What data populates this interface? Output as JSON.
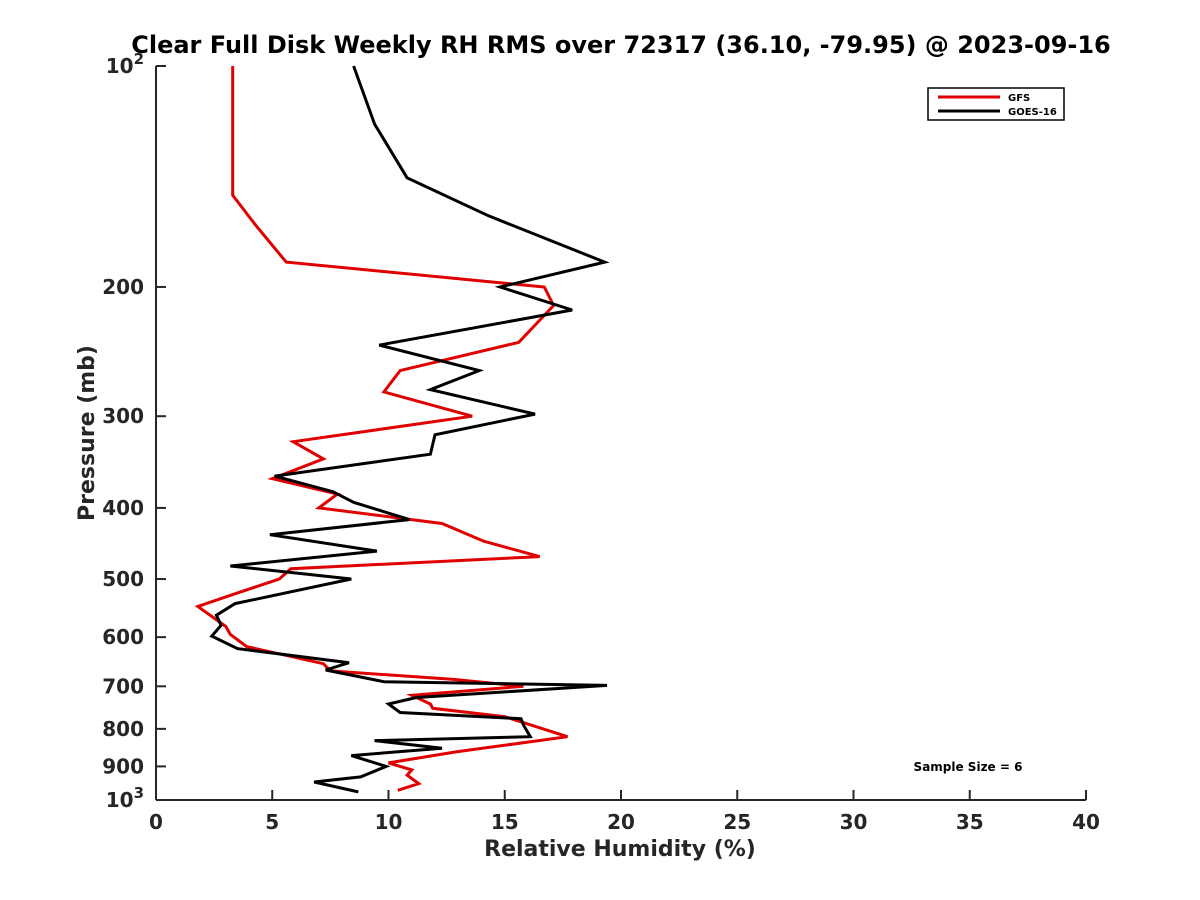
{
  "chart_data": {
    "type": "line",
    "title": "Clear Full Disk Weekly RH RMS over 72317 (36.10, -79.95) @ 2023-09-16",
    "xlabel": "Relative Humidity (%)",
    "ylabel": "Pressure (mb)",
    "xlim": [
      0,
      40
    ],
    "ylim": [
      100,
      1000
    ],
    "yscale": "log",
    "y_reversed": true,
    "xticks": [
      0,
      5,
      10,
      15,
      20,
      25,
      30,
      35,
      40
    ],
    "yticks": [
      {
        "value": 100,
        "label": "10",
        "sup": "2"
      },
      {
        "value": 200,
        "label": "200",
        "sup": ""
      },
      {
        "value": 300,
        "label": "300",
        "sup": ""
      },
      {
        "value": 400,
        "label": "400",
        "sup": ""
      },
      {
        "value": 500,
        "label": "500",
        "sup": ""
      },
      {
        "value": 600,
        "label": "600",
        "sup": ""
      },
      {
        "value": 700,
        "label": "700",
        "sup": ""
      },
      {
        "value": 800,
        "label": "800",
        "sup": ""
      },
      {
        "value": 900,
        "label": "900",
        "sup": ""
      },
      {
        "value": 1000,
        "label": "10",
        "sup": "3"
      }
    ],
    "grid": false,
    "legend_position": "top-right",
    "annotation": "Sample Size = 6",
    "series": [
      {
        "name": "GFS",
        "color": "#e00000",
        "points": [
          [
            3.3,
            100
          ],
          [
            3.3,
            125
          ],
          [
            3.3,
            150
          ],
          [
            4.3,
            165
          ],
          [
            5.6,
            185
          ],
          [
            16.7,
            200
          ],
          [
            17.1,
            212
          ],
          [
            15.6,
            238
          ],
          [
            10.5,
            260
          ],
          [
            9.8,
            278
          ],
          [
            13.6,
            300
          ],
          [
            5.9,
            325
          ],
          [
            7.2,
            343
          ],
          [
            5.0,
            365
          ],
          [
            7.8,
            383
          ],
          [
            7.0,
            400
          ],
          [
            12.3,
            420
          ],
          [
            14.1,
            444
          ],
          [
            16.5,
            466
          ],
          [
            5.8,
            484
          ],
          [
            5.3,
            500
          ],
          [
            3.3,
            525
          ],
          [
            1.8,
            545
          ],
          [
            3.0,
            580
          ],
          [
            3.2,
            595
          ],
          [
            3.9,
            618
          ],
          [
            7.2,
            652
          ],
          [
            7.5,
            667
          ],
          [
            12.8,
            685
          ],
          [
            15.8,
            700
          ],
          [
            11.0,
            720
          ],
          [
            11.8,
            740
          ],
          [
            11.9,
            750
          ],
          [
            15.0,
            770
          ],
          [
            17.7,
            820
          ],
          [
            12.9,
            860
          ],
          [
            10.0,
            890
          ],
          [
            11.0,
            910
          ],
          [
            10.8,
            925
          ],
          [
            11.3,
            950
          ],
          [
            10.4,
            970
          ]
        ]
      },
      {
        "name": "GOES-16",
        "color": "#000000",
        "points": [
          [
            8.5,
            100
          ],
          [
            9.4,
            120
          ],
          [
            10.8,
            142
          ],
          [
            14.3,
            160
          ],
          [
            19.3,
            185
          ],
          [
            14.8,
            200
          ],
          [
            17.9,
            215
          ],
          [
            9.6,
            240
          ],
          [
            13.9,
            260
          ],
          [
            11.8,
            276
          ],
          [
            16.3,
            298
          ],
          [
            12.0,
            318
          ],
          [
            11.8,
            338
          ],
          [
            5.1,
            362
          ],
          [
            7.6,
            380
          ],
          [
            8.5,
            393
          ],
          [
            10.9,
            415
          ],
          [
            4.9,
            435
          ],
          [
            9.5,
            458
          ],
          [
            3.2,
            480
          ],
          [
            8.4,
            500
          ],
          [
            3.4,
            540
          ],
          [
            2.6,
            560
          ],
          [
            2.8,
            578
          ],
          [
            2.4,
            598
          ],
          [
            3.5,
            622
          ],
          [
            8.3,
            650
          ],
          [
            7.3,
            665
          ],
          [
            9.8,
            690
          ],
          [
            19.4,
            698
          ],
          [
            11.2,
            725
          ],
          [
            10.0,
            740
          ],
          [
            10.5,
            760
          ],
          [
            15.7,
            775
          ],
          [
            15.8,
            790
          ],
          [
            16.1,
            820
          ],
          [
            9.4,
            830
          ],
          [
            12.3,
            850
          ],
          [
            8.4,
            870
          ],
          [
            9.9,
            900
          ],
          [
            8.8,
            930
          ],
          [
            6.8,
            945
          ],
          [
            8.7,
            975
          ]
        ]
      }
    ]
  }
}
